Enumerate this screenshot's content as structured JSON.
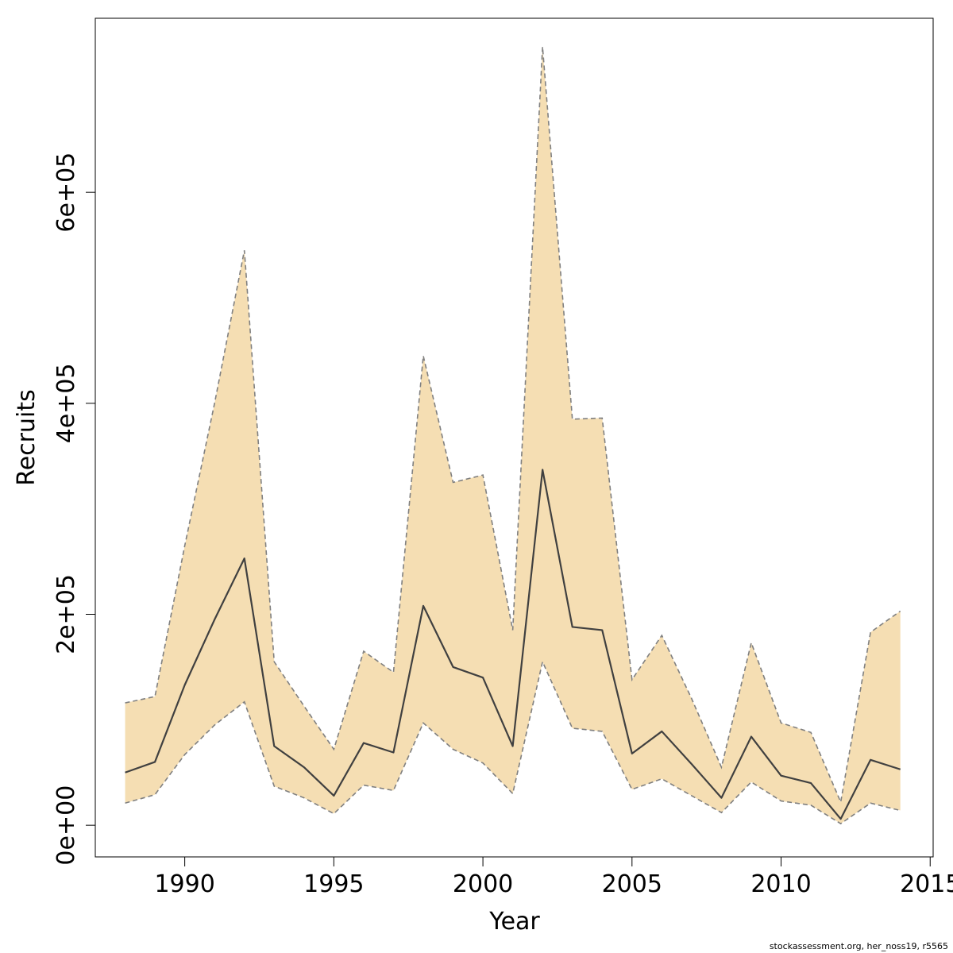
{
  "chart_data": {
    "type": "area",
    "title": "",
    "xlabel": "Year",
    "ylabel": "Recruits",
    "x": [
      1988,
      1989,
      1990,
      1991,
      1992,
      1993,
      1994,
      1995,
      1996,
      1997,
      1998,
      1999,
      2000,
      2001,
      2002,
      2003,
      2004,
      2005,
      2006,
      2007,
      2008,
      2009,
      2010,
      2011,
      2012,
      2013,
      2014
    ],
    "series": [
      {
        "role": "estimate",
        "values": [
          50000,
          60000,
          133000,
          195000,
          253000,
          75000,
          55000,
          28000,
          78000,
          69000,
          208000,
          150000,
          140000,
          75000,
          337000,
          188000,
          185000,
          68000,
          89000,
          58000,
          26000,
          84000,
          47000,
          40000,
          6000,
          62000,
          53000
        ]
      },
      {
        "role": "upper",
        "values": [
          116000,
          122000,
          265000,
          400000,
          545000,
          155000,
          113000,
          72000,
          165000,
          145000,
          445000,
          325000,
          332000,
          185000,
          738000,
          385000,
          386000,
          138000,
          180000,
          120000,
          55000,
          173000,
          97000,
          88000,
          22000,
          183000,
          203000
        ]
      },
      {
        "role": "lower",
        "values": [
          21000,
          29000,
          67000,
          95000,
          117000,
          37000,
          26000,
          11000,
          38000,
          33000,
          97000,
          72000,
          59000,
          30000,
          155000,
          92000,
          89000,
          34000,
          44000,
          28000,
          12000,
          41000,
          23000,
          19000,
          1500,
          21000,
          14000
        ]
      }
    ],
    "x_ticks": [
      "1990",
      "1995",
      "2000",
      "2005",
      "2010",
      "2015"
    ],
    "y_ticks": [
      "0e+00",
      "2e+05",
      "4e+05",
      "6e+05"
    ],
    "xlim": [
      1987,
      2015.1
    ],
    "ylim": [
      -30000,
      765000
    ],
    "grid": false,
    "colors": {
      "band_fill": "#f5deb3",
      "band_edge": "#808080",
      "line": "#404040"
    }
  },
  "credit": "stockassessment.org, her_noss19, r5565"
}
